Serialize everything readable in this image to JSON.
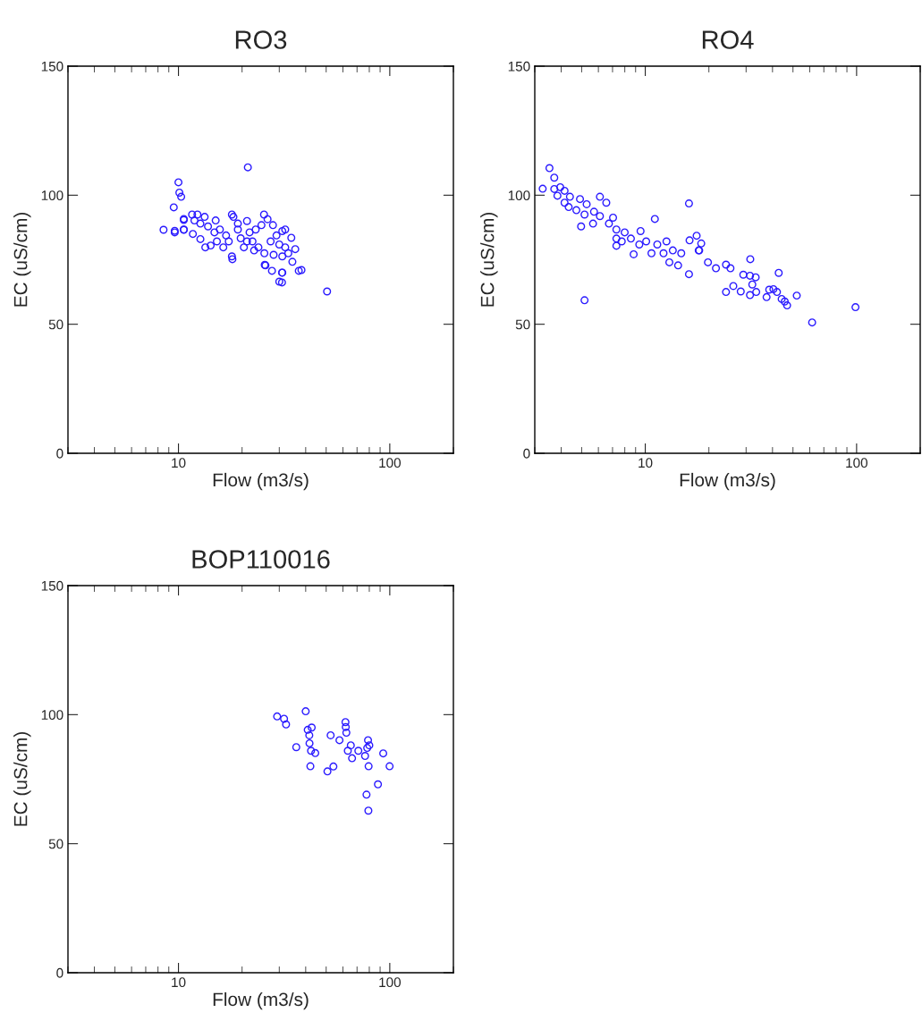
{
  "chart_data": [
    {
      "type": "scatter",
      "title": "RO3",
      "xlabel": "Flow (m3/s)",
      "ylabel": "EC (uS/cm)",
      "log": "x",
      "marker": "circle",
      "xlim": [
        3,
        200
      ],
      "ylim": [
        0,
        150
      ],
      "xticks": [
        10,
        100
      ],
      "yticks": [
        0,
        50,
        100,
        150
      ],
      "series": [
        {
          "color": "#2a1aff",
          "x": [
            21.3,
            10.0,
            10.1,
            10.3,
            9.5,
            8.5,
            9.6,
            9.6,
            10.6,
            10.6,
            25.6,
            27.7,
            30.9,
            30.0,
            30.9,
            37.1,
            38.2,
            50.5,
            34.2,
            35.7,
            34.6,
            31.0,
            25.8,
            11.6,
            12.3,
            13.3,
            10.6,
            11.9,
            12.7,
            11.7,
            10.6,
            12.7,
            13.4,
            14.2,
            15.0,
            15.7,
            17.9,
            18.2,
            19.1,
            21.1,
            16.3,
            17.9,
            18.0,
            16.8,
            19.7,
            21.7,
            22.4,
            23.9,
            25.4,
            26.4,
            28.0,
            31.0,
            32.0,
            29.1,
            27.3,
            30.0,
            32.0,
            25.5,
            28.2,
            31.0,
            33.1,
            21.1,
            20.4,
            17.3,
            14.8,
            13.8,
            23.2,
            24.7,
            22.8,
            19.1,
            15.2
          ],
          "values": [
            110.8,
            105,
            101,
            99.4,
            95.3,
            86.6,
            86.2,
            85.6,
            90.8,
            86.6,
            73,
            70.7,
            70,
            66.5,
            66.2,
            70.7,
            71,
            62.7,
            83.5,
            79.1,
            74.2,
            70,
            72.8,
            92.5,
            92.5,
            91.6,
            90.4,
            90.2,
            89,
            85,
            86.7,
            83,
            79.8,
            80.5,
            90.2,
            86.7,
            92.5,
            91.6,
            89,
            90,
            79.8,
            76.3,
            75.2,
            84.4,
            83.3,
            85.6,
            82.1,
            79.8,
            92.5,
            90.7,
            88.4,
            86.1,
            86.7,
            84.4,
            82.1,
            80.9,
            79.8,
            77.5,
            76.9,
            76.3,
            77.5,
            82.1,
            79.8,
            82.1,
            85.6,
            87.9,
            86.7,
            88.4,
            78.6,
            86.7,
            82.1
          ]
        }
      ]
    },
    {
      "type": "scatter",
      "title": "RO4",
      "xlabel": "Flow (m3/s)",
      "ylabel": "EC (uS/cm)",
      "log": "x",
      "marker": "circle",
      "xlim": [
        3,
        200
      ],
      "ylim": [
        0,
        150
      ],
      "xticks": [
        10,
        100
      ],
      "yticks": [
        0,
        50,
        100,
        150
      ],
      "series": [
        {
          "color": "#2a1aff",
          "x": [
            3.27,
            3.52,
            3.71,
            3.71,
            3.84,
            3.96,
            4.15,
            4.15,
            4.34,
            4.4,
            4.72,
            4.91,
            4.97,
            5.16,
            5.28,
            5.66,
            5.72,
            6.1,
            6.54,
            6.1,
            6.73,
            7.04,
            7.3,
            7.3,
            7.3,
            7.99,
            8.81,
            8.55,
            9.5,
            11.1,
            10.1,
            11.4,
            12.6,
            13.5,
            12.2,
            14.8,
            16.1,
            16.2,
            17.5,
            18.0,
            16.1,
            5.16,
            14.3,
            13.0,
            10.7,
            9.37,
            7.74,
            18.4,
            17.9,
            19.8,
            21.6,
            24.1,
            25.3,
            24.1,
            26.1,
            28.3,
            29.1,
            31.4,
            31.3,
            33.3,
            32.1,
            33.5,
            31.3,
            37.5,
            38.6,
            40.4,
            42.0,
            42.8,
            44.2,
            45.7,
            46.9,
            52.1,
            61.6,
            98.8
          ],
          "values": [
            102.5,
            110.5,
            106.8,
            102.4,
            99.8,
            103.1,
            101.7,
            97.1,
            95.4,
            99.4,
            94.2,
            98.5,
            87.9,
            92.5,
            96.5,
            89,
            93.6,
            99.4,
            97.1,
            91.9,
            89,
            91.3,
            86.7,
            83.2,
            80.4,
            85.6,
            77.1,
            83.2,
            86.1,
            90.8,
            82.1,
            80.9,
            82.1,
            78.6,
            77.5,
            77.5,
            96.8,
            82.5,
            84.3,
            78.6,
            69.4,
            59.3,
            72.8,
            74,
            77.5,
            80.9,
            82.1,
            81.3,
            78.6,
            74,
            71.7,
            73.1,
            71.7,
            62.5,
            64.8,
            62.7,
            69.2,
            75.2,
            68.8,
            68.2,
            65.4,
            62.5,
            61.3,
            60.5,
            63.4,
            63.6,
            62.5,
            69.9,
            59.8,
            58.8,
            57.3,
            61.1,
            50.7,
            56.6
          ]
        }
      ]
    },
    {
      "type": "scatter",
      "title": "BOP110016",
      "xlabel": "Flow (m3/s)",
      "ylabel": "EC (uS/cm)",
      "log": "x",
      "marker": "circle",
      "xlim": [
        3,
        200
      ],
      "ylim": [
        0,
        150
      ],
      "xticks": [
        10,
        100
      ],
      "yticks": [
        0,
        50,
        100,
        150
      ],
      "series": [
        {
          "color": "#2a1aff",
          "x": [
            29.3,
            31.6,
            32.3,
            40.0,
            36.1,
            40.9,
            42.7,
            41.6,
            41.7,
            42.4,
            44.4,
            42.1,
            50.7,
            54.1,
            52.5,
            57.8,
            61.7,
            61.9,
            62.3,
            65.4,
            63.3,
            66.3,
            71.0,
            76.4,
            78.9,
            80.0,
            78.2,
            79.4,
            93.1,
            99.8,
            87.9,
            77.6,
            79.2
          ],
          "values": [
            99.3,
            98.4,
            96.2,
            101.3,
            87.4,
            94.1,
            95.0,
            92.0,
            88.9,
            86.0,
            85.1,
            80.0,
            78.0,
            79.9,
            92.0,
            90.1,
            97.1,
            95.2,
            93.0,
            88.1,
            86.0,
            83.1,
            86.0,
            84.0,
            90.1,
            88.1,
            87.1,
            80.0,
            85.0,
            80.0,
            73.0,
            69.0,
            62.8
          ]
        }
      ]
    }
  ]
}
